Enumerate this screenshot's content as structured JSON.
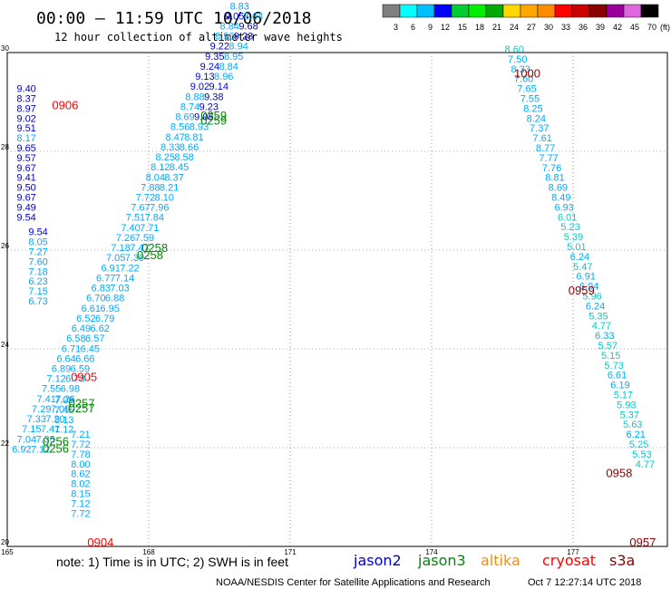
{
  "header": {
    "title": "00:00 – 11:59 UTC 10/06/2018",
    "subtitle": "12 hour collection of altimeter wave heights"
  },
  "colorbar": {
    "labels": [
      "3",
      "6",
      "9",
      "12",
      "15",
      "18",
      "21",
      "24",
      "27",
      "30",
      "33",
      "36",
      "39",
      "42",
      "45",
      "70"
    ],
    "unit": "(ft)",
    "colors": [
      "#808080",
      "#00ffff",
      "#00bfff",
      "#0000ff",
      "#00cc33",
      "#00ee00",
      "#00aa00",
      "#ffd700",
      "#ffa500",
      "#ff8c00",
      "#ff0000",
      "#cc0000",
      "#8b0000",
      "#990099",
      "#dd66dd",
      "#000000"
    ]
  },
  "footer": {
    "note": "note:  1) Time is in UTC; 2) SWH is in feet",
    "credit": "NOAA/NESDIS Center for Satellite Applications and Research",
    "timestamp": "Oct  7 12:27:14 UTC 2018"
  },
  "chart_data": {
    "type": "scatter",
    "x_range": [
      165,
      179
    ],
    "y_range": [
      20,
      30
    ],
    "x_ticks": [
      {
        "value": 165,
        "label": "165"
      },
      {
        "value": 168,
        "label": "168"
      },
      {
        "value": 171,
        "label": "171"
      },
      {
        "value": 174,
        "label": "174"
      },
      {
        "value": 177,
        "label": "177"
      }
    ],
    "y_ticks": [
      {
        "value": 20,
        "label": "20"
      },
      {
        "value": 22,
        "label": "22"
      },
      {
        "value": 24,
        "label": "24"
      },
      {
        "value": 26,
        "label": "26"
      },
      {
        "value": 28,
        "label": "28"
      },
      {
        "value": 30,
        "label": "30"
      }
    ],
    "grid": "dotted",
    "legend": [
      {
        "name": "jason2",
        "color": "#0000cc"
      },
      {
        "name": "jason3",
        "color": "#008800"
      },
      {
        "name": "altika",
        "color": "#ff8c00"
      },
      {
        "name": "cryosat",
        "color": "#ff0000"
      },
      {
        "name": "s3a",
        "color": "#8b0000"
      }
    ],
    "time_labels": [
      {
        "text": "0904",
        "lon": 166.7,
        "lat": 20.0,
        "color": "#ff0000"
      },
      {
        "text": "0905",
        "lon": 166.35,
        "lat": 23.35,
        "color": "#ff0000"
      },
      {
        "text": "0906",
        "lon": 165.95,
        "lat": 28.85,
        "color": "#ff0000"
      },
      {
        "text": "0256",
        "lon": 165.75,
        "lat": 22.05,
        "color": "#008800"
      },
      {
        "text": "0256",
        "lon": 165.75,
        "lat": 21.9,
        "color": "#008800"
      },
      {
        "text": "0257",
        "lon": 166.3,
        "lat": 22.82,
        "color": "#008800"
      },
      {
        "text": "0257",
        "lon": 166.3,
        "lat": 22.72,
        "color": "#008800"
      },
      {
        "text": "0258",
        "lon": 167.85,
        "lat": 25.96,
        "color": "#008800"
      },
      {
        "text": "0258",
        "lon": 167.75,
        "lat": 25.82,
        "color": "#008800"
      },
      {
        "text": "0259",
        "lon": 169.1,
        "lat": 28.64,
        "color": "#008800"
      },
      {
        "text": "0259",
        "lon": 169.1,
        "lat": 28.54,
        "color": "#008800"
      },
      {
        "text": "1000",
        "lon": 175.75,
        "lat": 29.5,
        "color": "#8b0000"
      },
      {
        "text": "0959",
        "lon": 176.9,
        "lat": 25.1,
        "color": "#8b0000"
      },
      {
        "text": "0958",
        "lon": 177.7,
        "lat": 21.4,
        "color": "#8b0000"
      },
      {
        "text": "0957",
        "lon": 178.2,
        "lat": 20.0,
        "color": "#8b0000"
      }
    ],
    "series": [
      {
        "track": "west-column",
        "start": [
          165.2,
          29.2
        ],
        "step": [
          0.0,
          -0.2
        ],
        "values": [
          {
            "v": "9.40",
            "c": "#0000cc"
          },
          {
            "v": "8.37",
            "c": "#0000cc"
          },
          {
            "v": "8.97",
            "c": "#0000cc"
          },
          {
            "v": "9.02",
            "c": "#0000cc"
          },
          {
            "v": "9.51",
            "c": "#0000cc"
          },
          {
            "v": "8.17",
            "c": "#00aaff"
          },
          {
            "v": "9.65",
            "c": "#0000cc"
          },
          {
            "v": "9.57",
            "c": "#0000cc"
          },
          {
            "v": "9.67",
            "c": "#0000cc"
          },
          {
            "v": "9.41",
            "c": "#0000cc"
          },
          {
            "v": "9.50",
            "c": "#0000cc"
          },
          {
            "v": "9.67",
            "c": "#0000cc"
          },
          {
            "v": "9.49",
            "c": "#0000cc"
          },
          {
            "v": "9.54",
            "c": "#0000cc"
          }
        ]
      },
      {
        "track": "west-lower",
        "start": [
          165.45,
          26.3
        ],
        "step": [
          0.0,
          -0.2
        ],
        "values": [
          {
            "v": "9.54",
            "c": "#0000cc"
          },
          {
            "v": "8.05",
            "c": "#00aaff"
          },
          {
            "v": "7.27",
            "c": "#00aaff"
          },
          {
            "v": "7.60",
            "c": "#00aaff"
          },
          {
            "v": "7.18",
            "c": "#00aaff"
          },
          {
            "v": "6.23",
            "c": "#00aaff"
          },
          {
            "v": "7.15",
            "c": "#00aaff"
          },
          {
            "v": "6.73",
            "c": "#00aaff"
          }
        ]
      },
      {
        "track": "west-bottom",
        "start": [
          166.35,
          22.2
        ],
        "step": [
          0.0,
          -0.2
        ],
        "values": [
          {
            "v": "7.21",
            "c": "#00aaff"
          },
          {
            "v": "7.72",
            "c": "#00aaff"
          },
          {
            "v": "7.78",
            "c": "#00aaff"
          },
          {
            "v": "8.00",
            "c": "#00aaff"
          },
          {
            "v": "8.62",
            "c": "#00aaff"
          },
          {
            "v": "8.02",
            "c": "#00aaff"
          },
          {
            "v": "8.15",
            "c": "#00aaff"
          },
          {
            "v": "7.12",
            "c": "#00aaff"
          },
          {
            "v": "7.72",
            "c": "#00aaff"
          }
        ]
      },
      {
        "track": "west-mid",
        "start": [
          166.0,
          22.9
        ],
        "step": [
          0.0,
          -0.2
        ],
        "values": [
          {
            "v": "7.09",
            "c": "#00aaff"
          },
          {
            "v": "7.45",
            "c": "#00aaff"
          },
          {
            "v": "8.13",
            "c": "#00aaff"
          },
          {
            "v": "7.12",
            "c": "#00aaff"
          }
        ]
      },
      {
        "track": "diagonal-a",
        "start": [
          165.1,
          21.9
        ],
        "step": [
          0.105,
          0.204
        ],
        "values": [
          {
            "v": "6.92",
            "c": "#00aaff"
          },
          {
            "v": "7.04",
            "c": "#00aaff"
          },
          {
            "v": "7.15",
            "c": "#00aaff"
          },
          {
            "v": "7.33",
            "c": "#00aaff"
          },
          {
            "v": "7.29",
            "c": "#00aaff"
          },
          {
            "v": "7.41",
            "c": "#00aaff"
          },
          {
            "v": "7.55",
            "c": "#00aaff"
          },
          {
            "v": "7.12",
            "c": "#00aaff"
          },
          {
            "v": "6.89",
            "c": "#00aaff"
          },
          {
            "v": "6.64",
            "c": "#00aaff"
          },
          {
            "v": "6.71",
            "c": "#00aaff"
          },
          {
            "v": "6.58",
            "c": "#00aaff"
          },
          {
            "v": "6.49",
            "c": "#00aaff"
          },
          {
            "v": "6.52",
            "c": "#00aaff"
          },
          {
            "v": "6.61",
            "c": "#00aaff"
          },
          {
            "v": "6.70",
            "c": "#00aaff"
          },
          {
            "v": "6.83",
            "c": "#00aaff"
          },
          {
            "v": "6.77",
            "c": "#00aaff"
          },
          {
            "v": "6.91",
            "c": "#00aaff"
          },
          {
            "v": "7.05",
            "c": "#00aaff"
          },
          {
            "v": "7.18",
            "c": "#00aaff"
          },
          {
            "v": "7.26",
            "c": "#00aaff"
          },
          {
            "v": "7.40",
            "c": "#00aaff"
          },
          {
            "v": "7.51",
            "c": "#00aaff"
          },
          {
            "v": "7.67",
            "c": "#00aaff"
          },
          {
            "v": "7.72",
            "c": "#00aaff"
          },
          {
            "v": "7.88",
            "c": "#00aaff"
          },
          {
            "v": "8.04",
            "c": "#00aaff"
          },
          {
            "v": "8.12",
            "c": "#00aaff"
          },
          {
            "v": "8.25",
            "c": "#00aaff"
          },
          {
            "v": "8.33",
            "c": "#00aaff"
          },
          {
            "v": "8.47",
            "c": "#00aaff"
          },
          {
            "v": "8.56",
            "c": "#00aaff"
          },
          {
            "v": "8.69",
            "c": "#00aaff"
          },
          {
            "v": "8.74",
            "c": "#00aaff"
          },
          {
            "v": "8.88",
            "c": "#00aaff"
          },
          {
            "v": "9.02",
            "c": "#0000cc"
          },
          {
            "v": "9.13",
            "c": "#0000cc"
          },
          {
            "v": "9.24",
            "c": "#0000cc"
          },
          {
            "v": "9.35",
            "c": "#0000cc"
          },
          {
            "v": "9.22",
            "c": "#0000cc"
          },
          {
            "v": "8.96",
            "c": "#00aaff"
          },
          {
            "v": "8.84",
            "c": "#00aaff"
          },
          {
            "v": "9.05",
            "c": "#0000cc"
          },
          {
            "v": "8.83",
            "c": "#00aaff"
          },
          {
            "v": "8.79",
            "c": "#00aaff"
          },
          {
            "v": "8.64",
            "c": "#00aaff"
          }
        ]
      },
      {
        "track": "diagonal-b",
        "start": [
          165.5,
          21.9
        ],
        "step": [
          0.105,
          0.204
        ],
        "values": [
          {
            "v": "7.12",
            "c": "#00aaff"
          },
          {
            "v": "7.35",
            "c": "#00aaff"
          },
          {
            "v": "7.41",
            "c": "#00aaff"
          },
          {
            "v": "7.20",
            "c": "#00aaff"
          },
          {
            "v": "7.09",
            "c": "#00aaff"
          },
          {
            "v": "7.26",
            "c": "#00aaff"
          },
          {
            "v": "6.98",
            "c": "#00aaff"
          },
          {
            "v": "6.73",
            "c": "#00aaff"
          },
          {
            "v": "6.59",
            "c": "#00aaff"
          },
          {
            "v": "6.66",
            "c": "#00aaff"
          },
          {
            "v": "6.45",
            "c": "#00aaff"
          },
          {
            "v": "6.57",
            "c": "#00aaff"
          },
          {
            "v": "6.62",
            "c": "#00aaff"
          },
          {
            "v": "6.79",
            "c": "#00aaff"
          },
          {
            "v": "6.95",
            "c": "#00aaff"
          },
          {
            "v": "6.88",
            "c": "#00aaff"
          },
          {
            "v": "7.03",
            "c": "#00aaff"
          },
          {
            "v": "7.14",
            "c": "#00aaff"
          },
          {
            "v": "7.22",
            "c": "#00aaff"
          },
          {
            "v": "7.39",
            "c": "#00aaff"
          },
          {
            "v": "7.47",
            "c": "#00aaff"
          },
          {
            "v": "7.59",
            "c": "#00aaff"
          },
          {
            "v": "7.71",
            "c": "#00aaff"
          },
          {
            "v": "7.84",
            "c": "#00aaff"
          },
          {
            "v": "7.96",
            "c": "#00aaff"
          },
          {
            "v": "8.10",
            "c": "#00aaff"
          },
          {
            "v": "8.21",
            "c": "#00aaff"
          },
          {
            "v": "8.37",
            "c": "#00aaff"
          },
          {
            "v": "8.45",
            "c": "#00aaff"
          },
          {
            "v": "8.58",
            "c": "#00aaff"
          },
          {
            "v": "8.66",
            "c": "#00aaff"
          },
          {
            "v": "8.81",
            "c": "#00aaff"
          },
          {
            "v": "8.93",
            "c": "#00aaff"
          },
          {
            "v": "9.05",
            "c": "#0000cc"
          },
          {
            "v": "9.23",
            "c": "#0000cc"
          },
          {
            "v": "9.38",
            "c": "#0000cc"
          },
          {
            "v": "9.14",
            "c": "#0000cc"
          },
          {
            "v": "8.96",
            "c": "#00aaff"
          },
          {
            "v": "8.84",
            "c": "#00aaff"
          },
          {
            "v": "8.95",
            "c": "#00aaff"
          },
          {
            "v": "8.94",
            "c": "#00aaff"
          },
          {
            "v": "9.23",
            "c": "#0000cc"
          },
          {
            "v": "9.68",
            "c": "#0000cc"
          },
          {
            "v": "8.64",
            "c": "#00aaff"
          }
        ]
      },
      {
        "track": "s3a",
        "start": [
          175.55,
          30.0
        ],
        "step": [
          0.066,
          -0.2
        ],
        "values": [
          {
            "v": "8.60",
            "c": "#00cccc"
          },
          {
            "v": "7.50",
            "c": "#00aaff"
          },
          {
            "v": "8.33",
            "c": "#00aaff"
          },
          {
            "v": "7.60",
            "c": "#00aaff"
          },
          {
            "v": "7.65",
            "c": "#00aaff"
          },
          {
            "v": "7.55",
            "c": "#00aaff"
          },
          {
            "v": "8.25",
            "c": "#00aaff"
          },
          {
            "v": "8.24",
            "c": "#00aaff"
          },
          {
            "v": "7.37",
            "c": "#00aaff"
          },
          {
            "v": "7.61",
            "c": "#00aaff"
          },
          {
            "v": "8.77",
            "c": "#00aaff"
          },
          {
            "v": "7.77",
            "c": "#00aaff"
          },
          {
            "v": "7.76",
            "c": "#00aaff"
          },
          {
            "v": "8.81",
            "c": "#00aaff"
          },
          {
            "v": "8.69",
            "c": "#00aaff"
          },
          {
            "v": "8.49",
            "c": "#00aaff"
          },
          {
            "v": "6.93",
            "c": "#00aaff"
          },
          {
            "v": "6.01",
            "c": "#00cccc"
          },
          {
            "v": "5.23",
            "c": "#00cccc"
          },
          {
            "v": "5.39",
            "c": "#00cccc"
          },
          {
            "v": "5.01",
            "c": "#00cccc"
          },
          {
            "v": "6.24",
            "c": "#00aaff"
          },
          {
            "v": "5.47",
            "c": "#00cccc"
          },
          {
            "v": "6.91",
            "c": "#00aaff"
          },
          {
            "v": "6.94",
            "c": "#00aaff"
          },
          {
            "v": "5.96",
            "c": "#00cccc"
          },
          {
            "v": "6.24",
            "c": "#00aaff"
          },
          {
            "v": "5.35",
            "c": "#00cccc"
          },
          {
            "v": "4.77",
            "c": "#00cccc"
          },
          {
            "v": "6.33",
            "c": "#00aaff"
          },
          {
            "v": "5.57",
            "c": "#00cccc"
          },
          {
            "v": "5.15",
            "c": "#00cccc"
          },
          {
            "v": "5.73",
            "c": "#00cccc"
          },
          {
            "v": "6.61",
            "c": "#00aaff"
          },
          {
            "v": "6.19",
            "c": "#00aaff"
          },
          {
            "v": "5.17",
            "c": "#00cccc"
          },
          {
            "v": "5.93",
            "c": "#00cccc"
          },
          {
            "v": "5.37",
            "c": "#00cccc"
          },
          {
            "v": "5.63",
            "c": "#00cccc"
          },
          {
            "v": "6.21",
            "c": "#00aaff"
          },
          {
            "v": "5.25",
            "c": "#00cccc"
          },
          {
            "v": "5.53",
            "c": "#00cccc"
          },
          {
            "v": "4.77",
            "c": "#00cccc"
          }
        ]
      }
    ]
  }
}
